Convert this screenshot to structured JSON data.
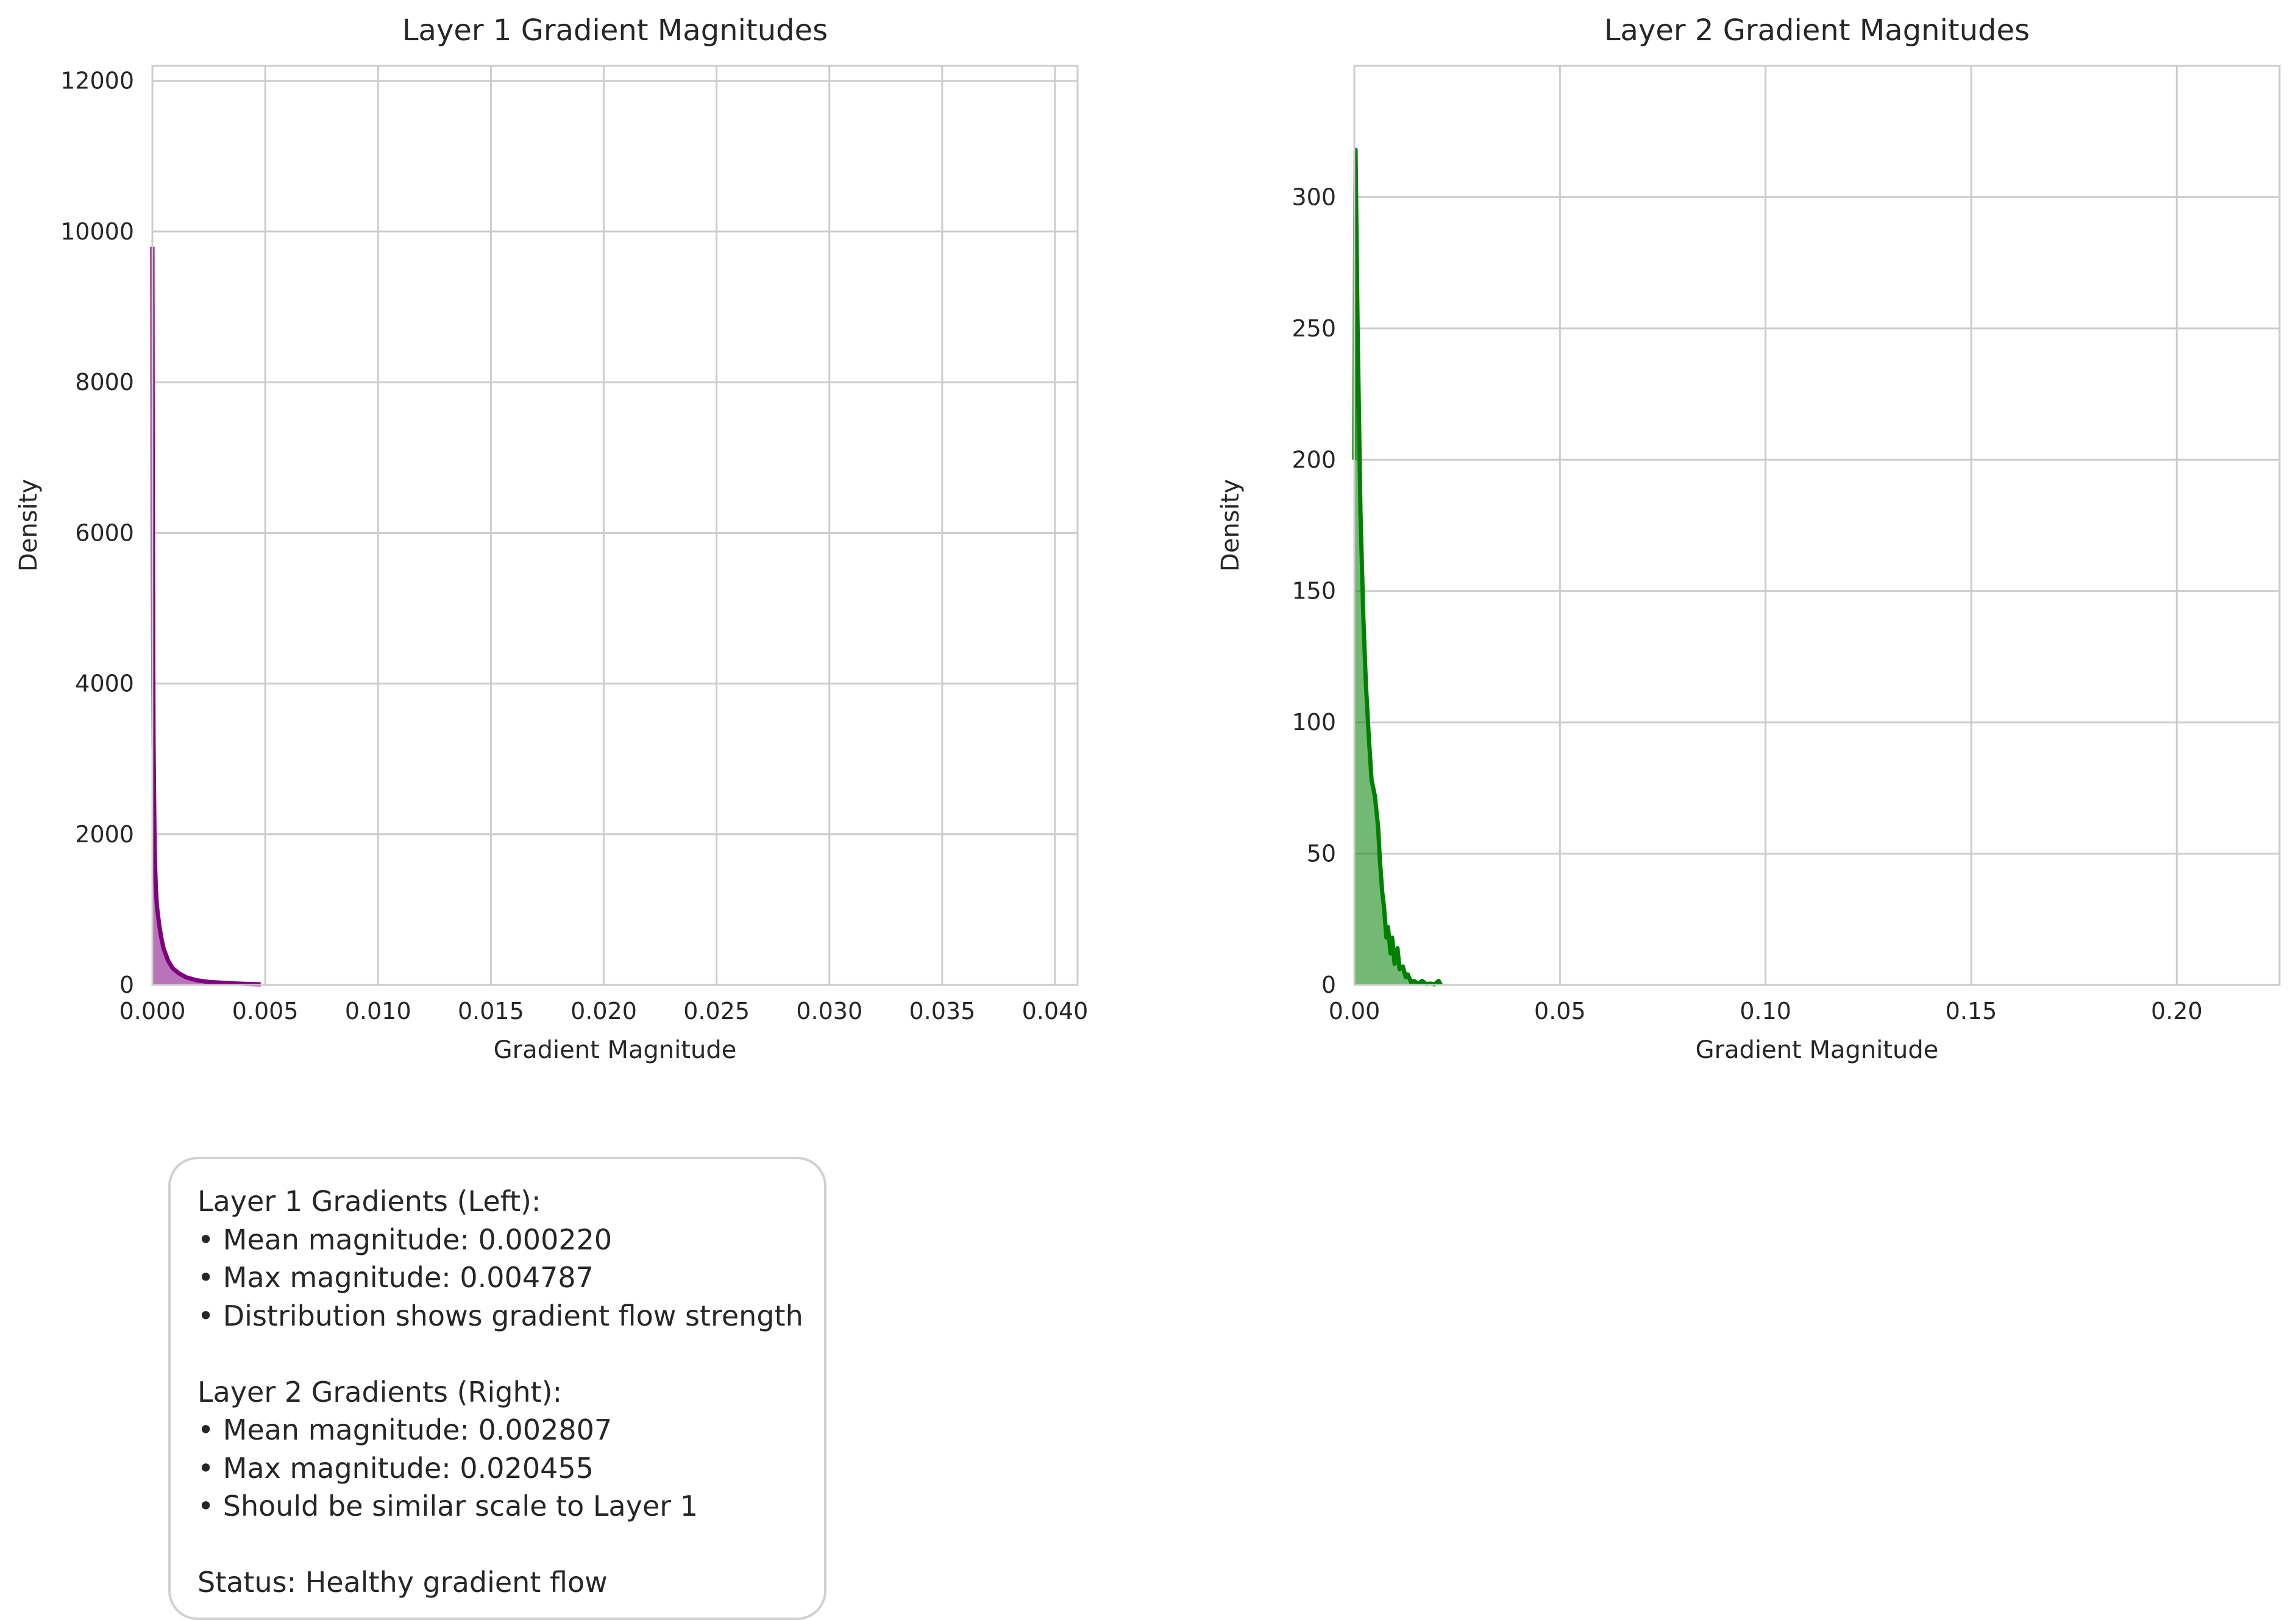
{
  "chart_data": [
    {
      "type": "area",
      "title": "Layer 1 Gradient Magnitudes",
      "xlabel": "Gradient Magnitude",
      "ylabel": "Density",
      "xlim": [
        0,
        0.041
      ],
      "ylim": [
        0,
        12200
      ],
      "xticks": [
        "0.000",
        "0.005",
        "0.010",
        "0.015",
        "0.020",
        "0.025",
        "0.030",
        "0.035",
        "0.040"
      ],
      "yticks": [
        "0",
        "2000",
        "4000",
        "6000",
        "8000",
        "10000",
        "12000"
      ],
      "grid": true,
      "color": "#800080",
      "series": [
        {
          "x": [
            0,
            2e-05,
            5e-05,
            0.0001,
            0.00015,
            0.0002,
            0.0003,
            0.0004,
            0.0005,
            0.0007,
            0.0009,
            0.0012,
            0.0015,
            0.002,
            0.0025,
            0.003,
            0.0035,
            0.004,
            0.0045,
            0.0048
          ],
          "values": [
            9800,
            6000,
            3200,
            1800,
            1300,
            1050,
            800,
            620,
            480,
            320,
            220,
            150,
            100,
            60,
            40,
            30,
            22,
            15,
            10,
            8
          ]
        }
      ]
    },
    {
      "type": "area",
      "title": "Layer 2 Gradient Magnitudes",
      "xlabel": "Gradient Magnitude",
      "ylabel": "Density",
      "xlim": [
        0,
        0.225
      ],
      "ylim": [
        0,
        350
      ],
      "xticks": [
        "0.00",
        "0.05",
        "0.10",
        "0.15",
        "0.20"
      ],
      "yticks": [
        "0",
        "50",
        "100",
        "150",
        "200",
        "250",
        "300"
      ],
      "grid": true,
      "color": "#008000",
      "series": [
        {
          "x": [
            0,
            0.0003,
            0.0008,
            0.0015,
            0.0022,
            0.0028,
            0.0035,
            0.0042,
            0.005,
            0.0058,
            0.0062,
            0.0068,
            0.0072,
            0.0078,
            0.0082,
            0.0088,
            0.0092,
            0.0098,
            0.0105,
            0.011,
            0.0118,
            0.0125,
            0.013,
            0.0138,
            0.0145,
            0.0155,
            0.0165,
            0.0175,
            0.0185,
            0.0195,
            0.0205,
            0.021
          ],
          "values": [
            200,
            318,
            250,
            180,
            140,
            115,
            95,
            78,
            72,
            60,
            48,
            35,
            30,
            18,
            22,
            12,
            18,
            8,
            14,
            6,
            7,
            3,
            4,
            1,
            1.5,
            0.5,
            1.5,
            0.3,
            0.5,
            0.2,
            1.5,
            0.1
          ]
        }
      ]
    }
  ],
  "stats_box": {
    "lines": [
      "Layer 1 Gradients (Left):",
      "• Mean magnitude: 0.000220",
      "• Max magnitude: 0.004787",
      "• Distribution shows gradient flow strength",
      "",
      "Layer 2 Gradients (Right):",
      "• Mean magnitude: 0.002807",
      "• Max magnitude: 0.020455",
      "• Should be similar scale to Layer 1",
      "",
      "Status: Healthy gradient flow"
    ]
  }
}
